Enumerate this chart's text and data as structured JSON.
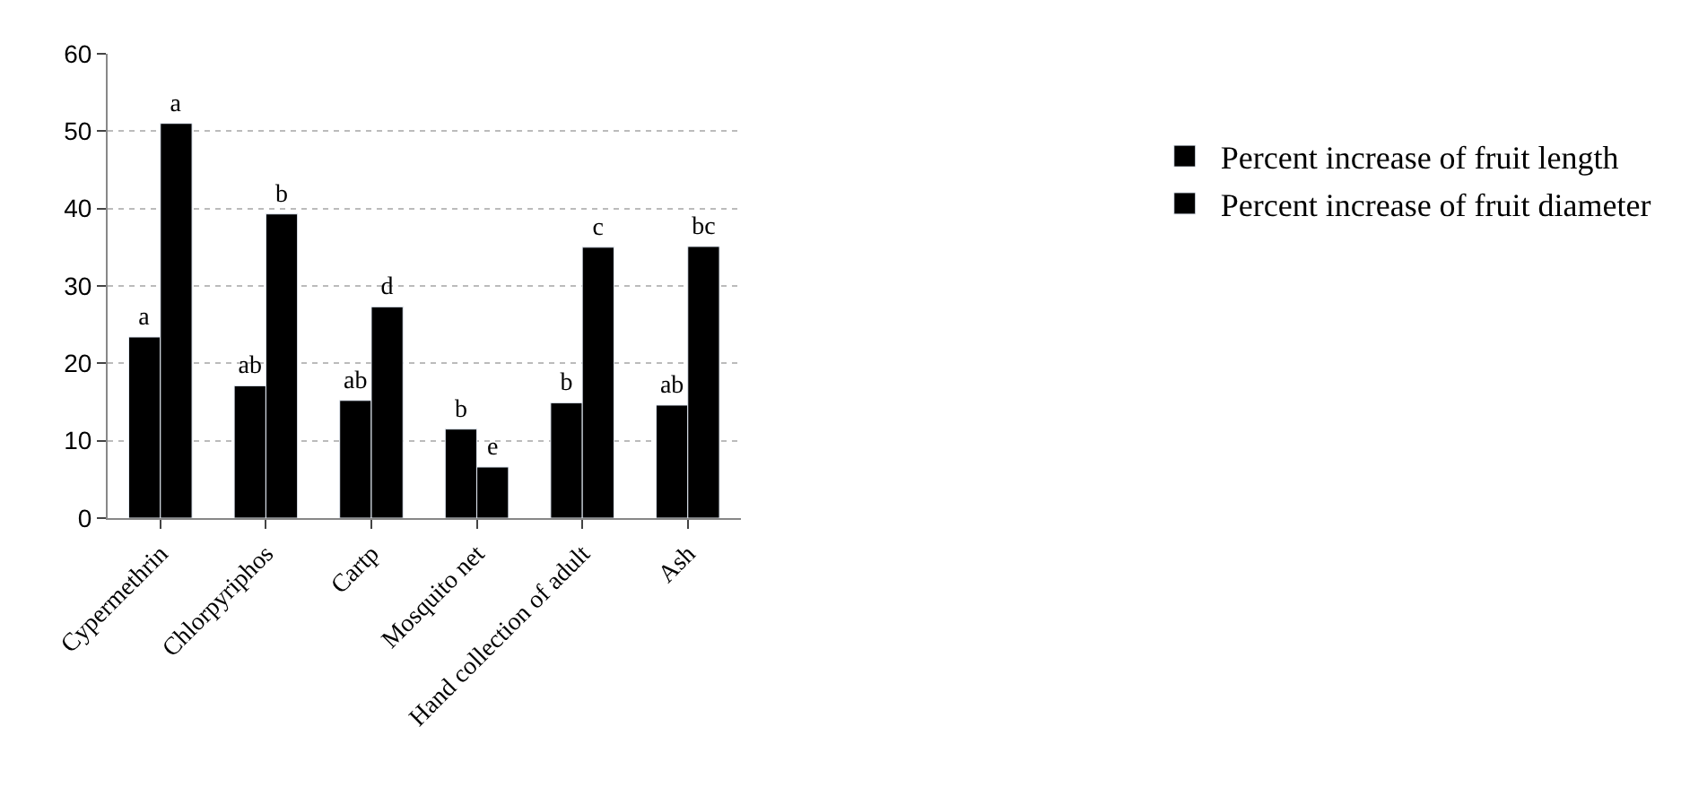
{
  "chart_data": {
    "type": "bar",
    "categories": [
      "Cypermethrin",
      "Chlorpyriphos",
      "Cartp",
      "Mosquito net",
      "Hand collection of adult",
      "Ash"
    ],
    "series": [
      {
        "name": "Percent increase of fruit length",
        "color": "#000000",
        "values": [
          23.4,
          17.1,
          15.2,
          11.5,
          14.9,
          14.6
        ],
        "value_labels": [
          "a",
          "ab",
          "ab",
          "b",
          "b",
          "ab"
        ]
      },
      {
        "name": "Percent increase of fruit diameter",
        "color": "#000000",
        "values": [
          51,
          39.3,
          27.3,
          6.6,
          35,
          35.1
        ],
        "value_labels": [
          "a",
          "b",
          "d",
          "e",
          "c",
          "bc"
        ]
      }
    ],
    "ylim": [
      0,
      60
    ],
    "yticks": [
      0,
      10,
      20,
      30,
      40,
      50,
      60
    ],
    "grid": "y",
    "legend": "right"
  }
}
